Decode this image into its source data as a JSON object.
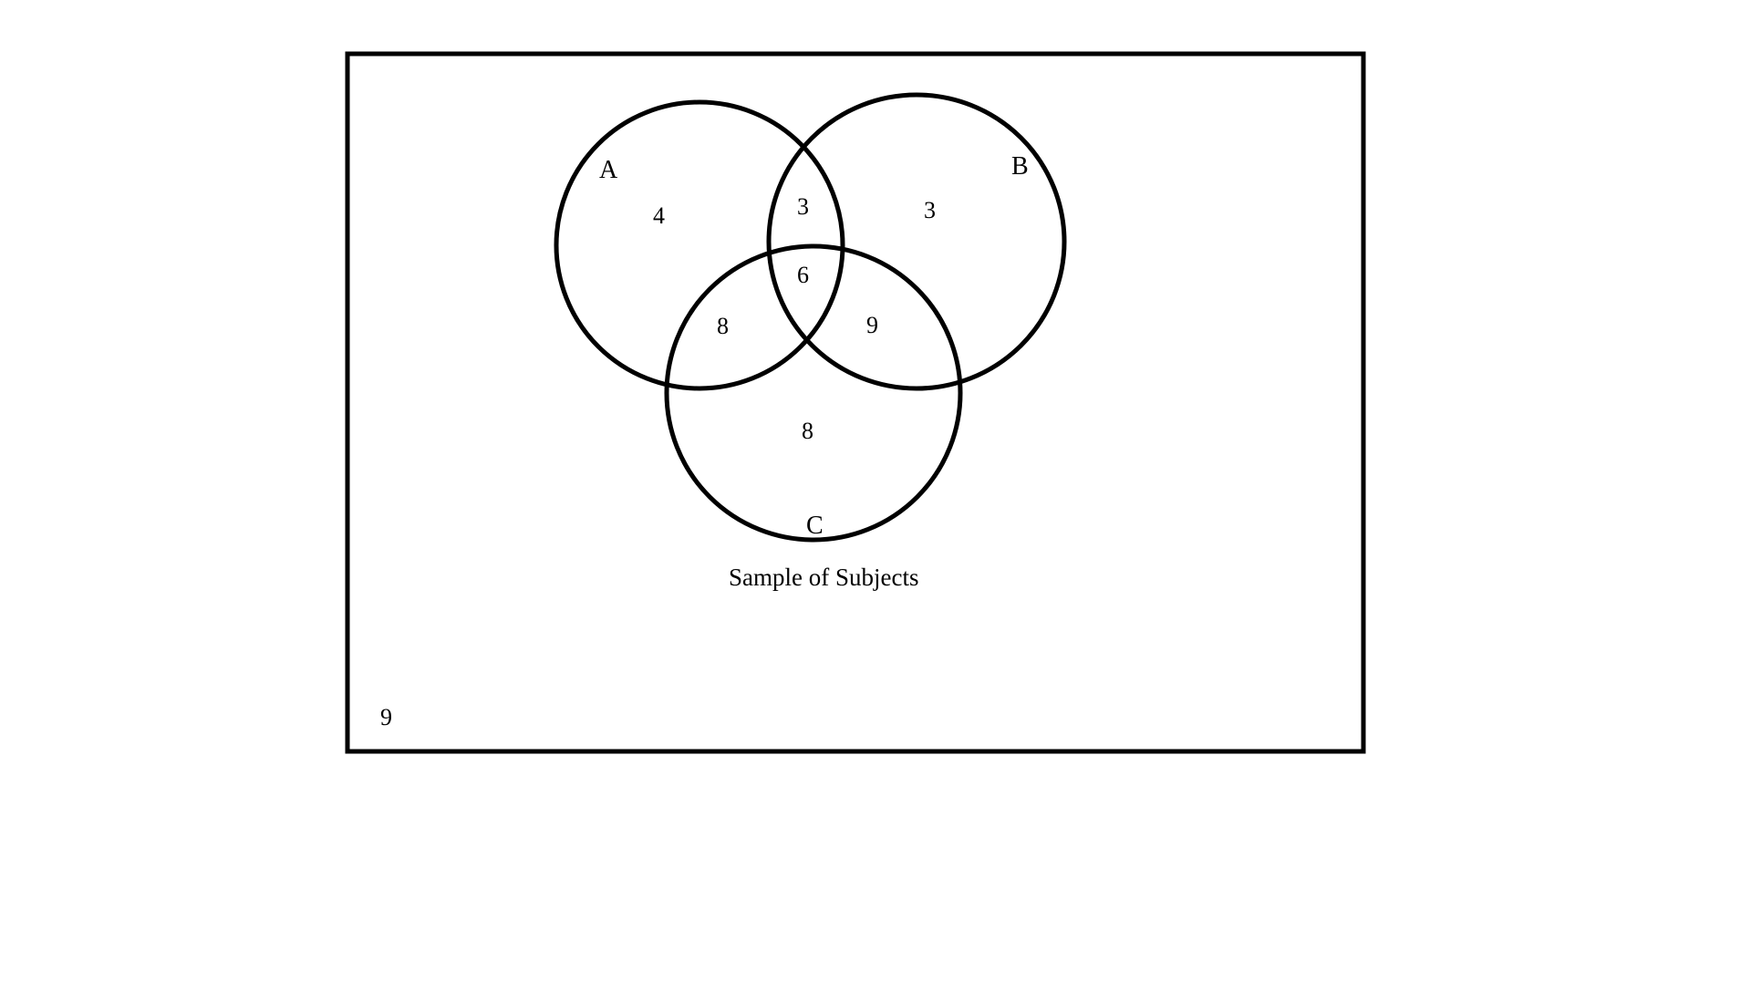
{
  "diagram": {
    "caption": "Sample of Subjects",
    "stroke_color": "#000000",
    "background": "#ffffff",
    "sets": {
      "a": "A",
      "b": "B",
      "c": "C"
    },
    "regions": {
      "a_only": "4",
      "a_and_b_only": "3",
      "b_only": "3",
      "a_b_and_c": "6",
      "a_and_c_only": "8",
      "b_and_c_only": "9",
      "c_only": "8",
      "outside": "9"
    }
  }
}
